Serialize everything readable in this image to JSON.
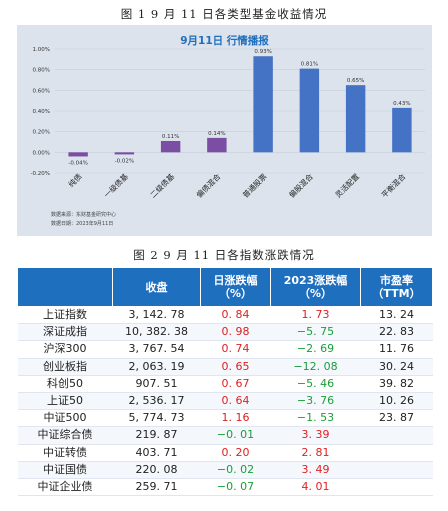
{
  "captions": {
    "chart": "图 1  9 月 11 日各类型基金收益情况",
    "table": "图 2  9 月 11 日各指数涨跌情况"
  },
  "chart_data": {
    "type": "bar",
    "title": "9月11日  行情播报",
    "categories": [
      "纯债",
      "一级债基",
      "二级债基",
      "偏债混合",
      "普通股票",
      "偏股混合",
      "灵活配置",
      "平衡混合"
    ],
    "values": [
      -0.04,
      -0.02,
      0.11,
      0.14,
      0.93,
      0.81,
      0.65,
      0.43
    ],
    "data_labels": [
      "-0.04%",
      "-0.02%",
      "0.11%",
      "0.14%",
      "0.93%",
      "0.81%",
      "0.65%",
      "0.43%"
    ],
    "ylim": [
      -0.2,
      1.0
    ],
    "yticks": [
      -0.2,
      0.0,
      0.2,
      0.4,
      0.6,
      0.8,
      1.0
    ],
    "ytick_labels": [
      "-0.20%",
      "0.00%",
      "0.20%",
      "0.40%",
      "0.60%",
      "0.80%",
      "1.00%"
    ],
    "grid": true,
    "colors": {
      "bar": "#4472c4",
      "bar_small": "#7b4ea3",
      "title": "#1f6fbf",
      "panel": "#dce3ec"
    },
    "source": [
      "数据来源：东财基金研究中心",
      "数据日期：2023年9月11日"
    ]
  },
  "table": {
    "headers": [
      "",
      "收盘",
      "日涨跌幅\n（%）",
      "2023涨跌幅\n（%）",
      "市盈率\n（TTM）"
    ],
    "rows": [
      {
        "name": "上证指数",
        "close": "3, 142. 78",
        "day": "0. 84",
        "ytd": "1. 73",
        "pe": "13. 24",
        "day_sign": "pos",
        "ytd_sign": "pos"
      },
      {
        "name": "深证成指",
        "close": "10, 382. 38",
        "day": "0. 98",
        "ytd": "−5. 75",
        "pe": "22. 83",
        "day_sign": "pos",
        "ytd_sign": "neg"
      },
      {
        "name": "沪深300",
        "close": "3, 767. 54",
        "day": "0. 74",
        "ytd": "−2. 69",
        "pe": "11. 76",
        "day_sign": "pos",
        "ytd_sign": "neg"
      },
      {
        "name": "创业板指",
        "close": "2, 063. 19",
        "day": "0. 65",
        "ytd": "−12. 08",
        "pe": "30. 24",
        "day_sign": "pos",
        "ytd_sign": "neg"
      },
      {
        "name": "科创50",
        "close": "907. 51",
        "day": "0. 67",
        "ytd": "−5. 46",
        "pe": "39. 82",
        "day_sign": "pos",
        "ytd_sign": "neg"
      },
      {
        "name": "上证50",
        "close": "2, 536. 17",
        "day": "0. 64",
        "ytd": "−3. 76",
        "pe": "10. 26",
        "day_sign": "pos",
        "ytd_sign": "neg"
      },
      {
        "name": "中证500",
        "close": "5, 774. 73",
        "day": "1. 16",
        "ytd": "−1. 53",
        "pe": "23. 87",
        "day_sign": "pos",
        "ytd_sign": "neg"
      },
      {
        "name": "中证综合债",
        "close": "219. 87",
        "day": "−0. 01",
        "ytd": "3. 39",
        "pe": "",
        "day_sign": "neg",
        "ytd_sign": "pos"
      },
      {
        "name": "中证转债",
        "close": "403. 71",
        "day": "0. 20",
        "ytd": "2. 81",
        "pe": "",
        "day_sign": "pos",
        "ytd_sign": "pos"
      },
      {
        "name": "中证国债",
        "close": "220. 08",
        "day": "−0. 02",
        "ytd": "3. 49",
        "pe": "",
        "day_sign": "neg",
        "ytd_sign": "pos"
      },
      {
        "name": "中证企业债",
        "close": "259. 71",
        "day": "−0. 07",
        "ytd": "4. 01",
        "pe": "",
        "day_sign": "neg",
        "ytd_sign": "pos"
      }
    ]
  }
}
